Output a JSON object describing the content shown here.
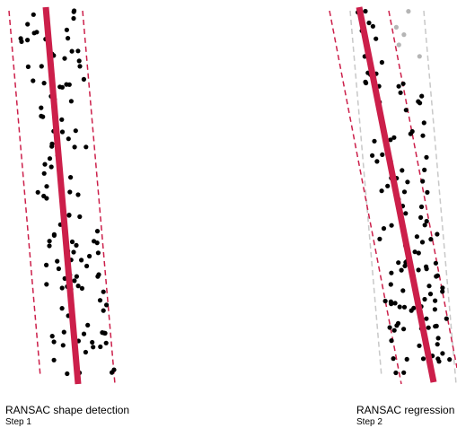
{
  "colors": {
    "fit_line": "#cc1f4a",
    "threshold_line": "#cc1f4a",
    "prior_threshold_line": "#c8c8c8",
    "inlier_point": "#000000",
    "outlier_point": "#b5b5b5",
    "background": "#ffffff"
  },
  "panels": [
    {
      "title": "RANSAC shape detection",
      "subtitle": "Step 1"
    },
    {
      "title": "RANSAC regression",
      "subtitle": "Step 2"
    }
  ]
}
